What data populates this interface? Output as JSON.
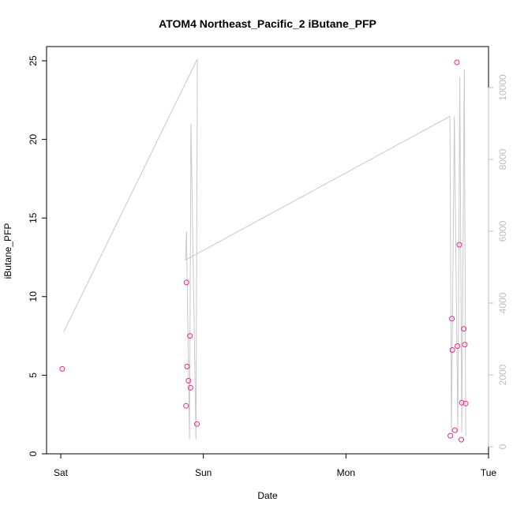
{
  "chart_data": {
    "type": "scatter",
    "title": "ATOM4 Northeast_Pacific_2 iButane_PFP",
    "xlabel": "Date",
    "ylabel": "iButane_PFP",
    "x_axis": {
      "type": "date",
      "ticks": [
        {
          "label": "Sat",
          "value": "Sat 00:00"
        },
        {
          "label": "Sun",
          "value": "Sun 00:00"
        },
        {
          "label": "Mon",
          "value": "Mon 00:00"
        },
        {
          "label": "Tue",
          "value": "Tue 00:00"
        }
      ]
    },
    "y_axis": {
      "range": [
        0,
        25
      ],
      "ticks": [
        0,
        5,
        10,
        15,
        20,
        25
      ]
    },
    "y2_axis": {
      "range": [
        0,
        10000
      ],
      "ticks": [
        0,
        2000,
        4000,
        6000,
        8000,
        10000
      ],
      "color": "#bdbdbd"
    },
    "grid": false,
    "colors": {
      "points": "#e7298a",
      "secondary_line": "#c8c8c8"
    },
    "series": [
      {
        "kind": "points",
        "axis": "left",
        "points": [
          {
            "x": "Sat 00:15",
            "y": 5.4
          },
          {
            "x": "Sat 21:05",
            "y": 3.05
          },
          {
            "x": "Sat 21:10",
            "y": 10.9
          },
          {
            "x": "Sat 21:15",
            "y": 5.55
          },
          {
            "x": "Sat 21:30",
            "y": 4.65
          },
          {
            "x": "Sat 21:45",
            "y": 7.5
          },
          {
            "x": "Sat 21:50",
            "y": 4.2
          },
          {
            "x": "Sat 22:55",
            "y": 1.9
          },
          {
            "x": "Mon 17:35",
            "y": 1.15
          },
          {
            "x": "Mon 17:50",
            "y": 8.6
          },
          {
            "x": "Mon 17:55",
            "y": 6.6
          },
          {
            "x": "Mon 18:20",
            "y": 1.5
          },
          {
            "x": "Mon 18:40",
            "y": 24.9
          },
          {
            "x": "Mon 18:45",
            "y": 6.85
          },
          {
            "x": "Mon 19:05",
            "y": 13.3
          },
          {
            "x": "Mon 19:25",
            "y": 0.9
          },
          {
            "x": "Mon 19:30",
            "y": 3.25
          },
          {
            "x": "Mon 19:50",
            "y": 7.95
          },
          {
            "x": "Mon 20:00",
            "y": 6.95
          },
          {
            "x": "Mon 20:10",
            "y": 3.2
          }
        ]
      },
      {
        "kind": "line",
        "axis": "right",
        "points": [
          {
            "x": "Sat 00:30",
            "y": 3200
          },
          {
            "x": "Sat 23:00",
            "y": 10800
          },
          {
            "x": "Sat 22:45",
            "y": 200
          },
          {
            "x": "Sat 21:55",
            "y": 9000
          },
          {
            "x": "Sat 21:40",
            "y": 200
          },
          {
            "x": "Sat 21:10",
            "y": 6000
          },
          {
            "x": "Sat 21:00",
            "y": 5200
          },
          {
            "x": "Mon 17:30",
            "y": 9200
          },
          {
            "x": "Mon 17:45",
            "y": 400
          },
          {
            "x": "Mon 18:15",
            "y": 9200
          },
          {
            "x": "Mon 18:50",
            "y": 400
          },
          {
            "x": "Mon 19:10",
            "y": 10300
          },
          {
            "x": "Mon 19:30",
            "y": 400
          },
          {
            "x": "Mon 19:55",
            "y": 10500
          },
          {
            "x": "Mon 20:10",
            "y": 300
          }
        ]
      }
    ]
  }
}
